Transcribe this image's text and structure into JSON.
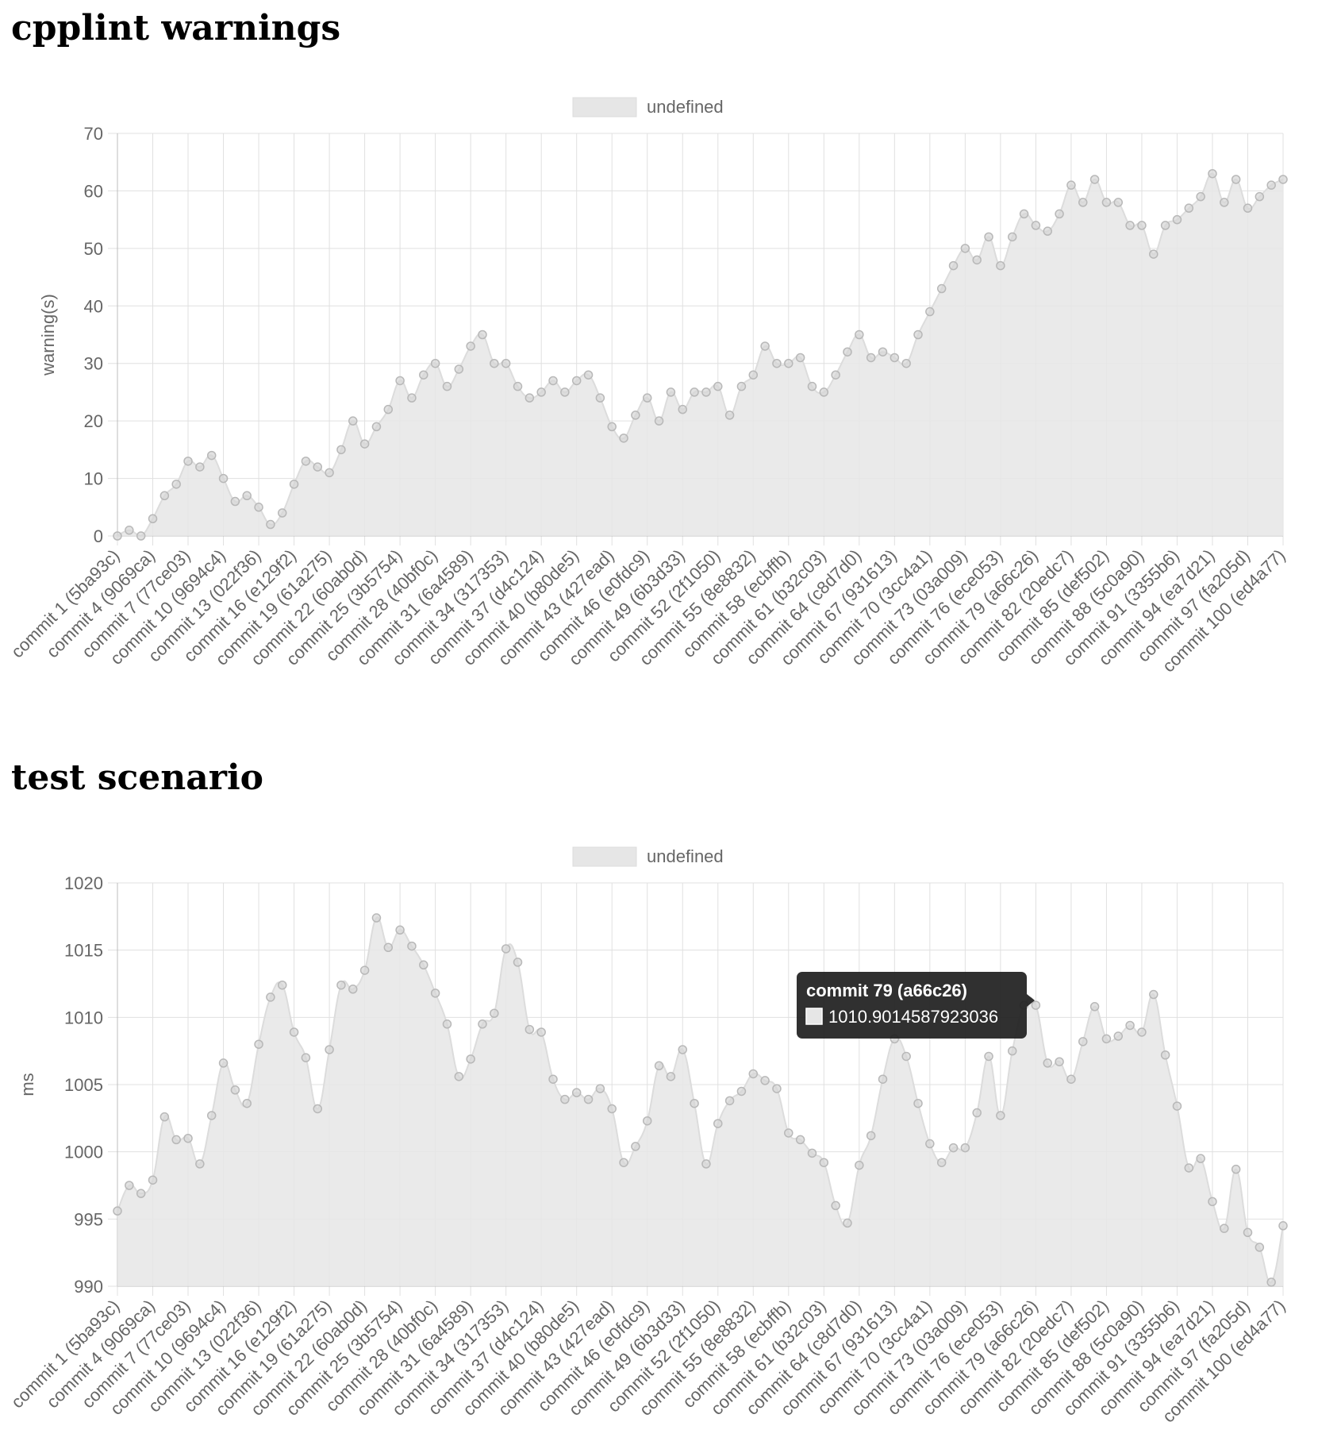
{
  "page": {
    "headings": [
      "cpplint warnings",
      "test scenario"
    ]
  },
  "colors": {
    "fill": "#e6e6e6",
    "stroke": "#dcdcdc",
    "point_fill": "#d6d6d6",
    "point_stroke": "#b8b8b8",
    "grid": "#e0e0e0",
    "axis_text": "#666666",
    "tooltip_bg": "#1e1e1e"
  },
  "chart_data": [
    {
      "type": "area",
      "title": "",
      "legend": {
        "label": "undefined",
        "placement": "top-center"
      },
      "ylabel": "warning(s)",
      "ylim": [
        0,
        70
      ],
      "yticks": [
        0,
        10,
        20,
        30,
        40,
        50,
        60,
        70
      ],
      "grid": true,
      "tick_labels": [
        "commit 1 (5ba93c)",
        "commit 4 (9069ca)",
        "commit 7 (77ce03)",
        "commit 10 (9694c4)",
        "commit 13 (022f36)",
        "commit 16 (e129f2)",
        "commit 19 (61a275)",
        "commit 22 (60ab0d)",
        "commit 25 (3b5754)",
        "commit 28 (40bf0c)",
        "commit 31 (6a4589)",
        "commit 34 (317353)",
        "commit 37 (d4c124)",
        "commit 40 (b80de5)",
        "commit 43 (427ead)",
        "commit 46 (e0fdc9)",
        "commit 49 (6b3d33)",
        "commit 52 (2f1050)",
        "commit 55 (8e8832)",
        "commit 58 (ecbffb)",
        "commit 61 (b32c03)",
        "commit 64 (c8d7d0)",
        "commit 67 (931613)",
        "commit 70 (3cc4a1)",
        "commit 73 (03a009)",
        "commit 76 (ece053)",
        "commit 79 (a66c26)",
        "commit 82 (20edc7)",
        "commit 85 (def502)",
        "commit 88 (5c0a90)",
        "commit 91 (3355b6)",
        "commit 94 (ea7d21)",
        "commit 97 (fa205d)",
        "commit 100 (ed4a77)"
      ],
      "series": [
        {
          "values": [
            0,
            1,
            0,
            3,
            7,
            9,
            13,
            12,
            14,
            10,
            6,
            7,
            5,
            2,
            4,
            9,
            13,
            12,
            11,
            15,
            20,
            16,
            19,
            22,
            27,
            24,
            28,
            30,
            26,
            29,
            33,
            35,
            30,
            30,
            26,
            24,
            25,
            27,
            25,
            27,
            28,
            24,
            19,
            17,
            21,
            24,
            20,
            25,
            22,
            25,
            25,
            26,
            21,
            26,
            28,
            33,
            30,
            30,
            31,
            26,
            25,
            28,
            32,
            35,
            31,
            32,
            31,
            30,
            35,
            39,
            43,
            47,
            50,
            48,
            52,
            47,
            52,
            56,
            54,
            53,
            56,
            61,
            58,
            62,
            58,
            58,
            54,
            54,
            49,
            54,
            55,
            57,
            59,
            63,
            58,
            62,
            57,
            59,
            61,
            62
          ]
        }
      ]
    },
    {
      "type": "area",
      "title": "",
      "legend": {
        "label": "undefined",
        "placement": "top-center"
      },
      "ylabel": "ms",
      "ylim": [
        990,
        1020
      ],
      "yticks": [
        990,
        995,
        1000,
        1005,
        1010,
        1015,
        1020
      ],
      "grid": true,
      "tick_labels": [
        "commit 1 (5ba93c)",
        "commit 4 (9069ca)",
        "commit 7 (77ce03)",
        "commit 10 (9694c4)",
        "commit 13 (022f36)",
        "commit 16 (e129f2)",
        "commit 19 (61a275)",
        "commit 22 (60ab0d)",
        "commit 25 (3b5754)",
        "commit 28 (40bf0c)",
        "commit 31 (6a4589)",
        "commit 34 (317353)",
        "commit 37 (d4c124)",
        "commit 40 (b80de5)",
        "commit 43 (427ead)",
        "commit 46 (e0fdc9)",
        "commit 49 (6b3d33)",
        "commit 52 (2f1050)",
        "commit 55 (8e8832)",
        "commit 58 (ecbffb)",
        "commit 61 (b32c03)",
        "commit 64 (c8d7d0)",
        "commit 67 (931613)",
        "commit 70 (3cc4a1)",
        "commit 73 (03a009)",
        "commit 76 (ece053)",
        "commit 79 (a66c26)",
        "commit 82 (20edc7)",
        "commit 85 (def502)",
        "commit 88 (5c0a90)",
        "commit 91 (3355b6)",
        "commit 94 (ea7d21)",
        "commit 97 (fa205d)",
        "commit 100 (ed4a77)"
      ],
      "series": [
        {
          "values": [
            995.6,
            997.5,
            996.9,
            997.9,
            1002.6,
            1000.9,
            1001,
            999.1,
            1002.7,
            1006.6,
            1004.6,
            1003.6,
            1008,
            1011.5,
            1012.4,
            1008.9,
            1007,
            1003.2,
            1007.6,
            1012.4,
            1012.1,
            1013.5,
            1017.4,
            1015.2,
            1016.5,
            1015.3,
            1013.9,
            1011.8,
            1009.5,
            1005.6,
            1006.9,
            1009.5,
            1010.3,
            1015.1,
            1014.1,
            1009.1,
            1008.9,
            1005.4,
            1003.9,
            1004.4,
            1003.9,
            1004.7,
            1003.2,
            999.2,
            1000.4,
            1002.3,
            1006.4,
            1005.6,
            1007.6,
            1003.6,
            999.1,
            1002.1,
            1003.8,
            1004.5,
            1005.8,
            1005.3,
            1004.7,
            1001.4,
            1000.9,
            999.9,
            999.2,
            996,
            994.7,
            999,
            1001.2,
            1005.4,
            1008.4,
            1007.1,
            1003.6,
            1000.6,
            999.2,
            1000.3,
            1000.3,
            1002.9,
            1007.1,
            1002.7,
            1007.5,
            1010.9014587923036,
            1010.9,
            1006.6,
            1006.7,
            1005.4,
            1008.2,
            1010.8,
            1008.4,
            1008.6,
            1009.4,
            1008.9,
            1011.7,
            1007.2,
            1003.4,
            998.8,
            999.5,
            996.3,
            994.3,
            998.7,
            994,
            992.9,
            990.3,
            994.5
          ]
        }
      ],
      "tooltip": {
        "title": "commit 79 (a66c26)",
        "value": "1010.9014587923036"
      }
    }
  ]
}
